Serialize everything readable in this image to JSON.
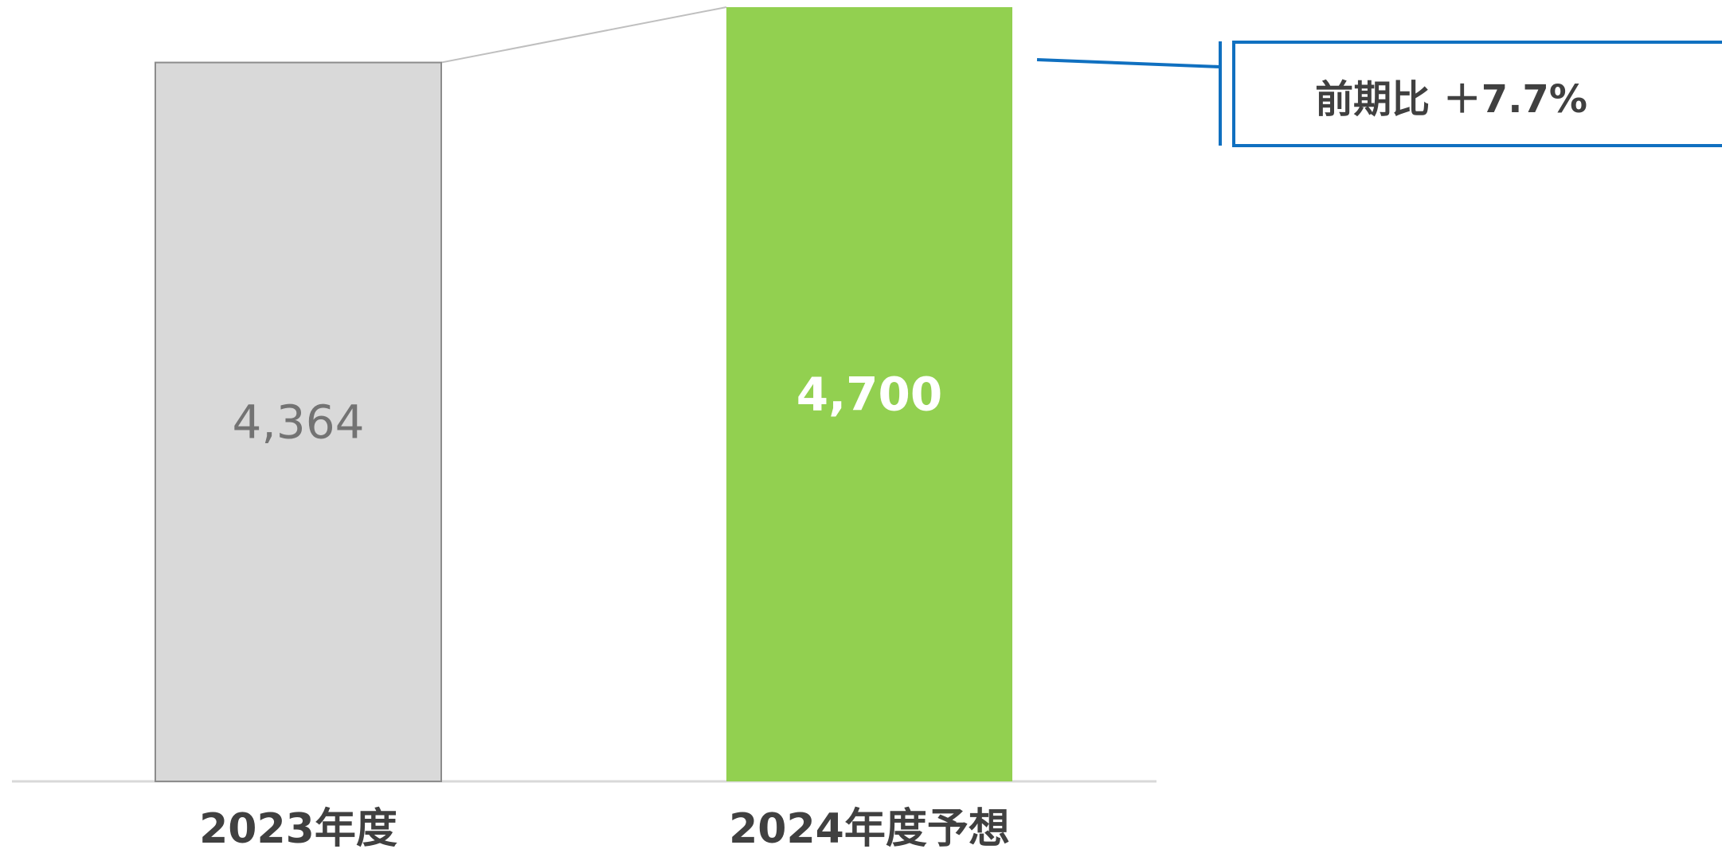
{
  "chart_data": {
    "type": "bar",
    "categories": [
      "2023年度",
      "2024年度予想"
    ],
    "values": [
      4364,
      4700
    ],
    "value_labels": [
      "4,364",
      "4,700"
    ],
    "bar_colors": [
      "#d9d9d9",
      "#92d050"
    ],
    "bar_stroke_colors": [
      "#8c8c8c",
      "none"
    ],
    "label_colors": [
      "#737373",
      "#ffffff"
    ],
    "connector_color": "#bfbfbf",
    "callout": {
      "text": "前期比 ＋7.7%",
      "border_color": "#1070c0"
    },
    "axis_color": "#d9d9d9",
    "grid": false,
    "legend": "none"
  }
}
